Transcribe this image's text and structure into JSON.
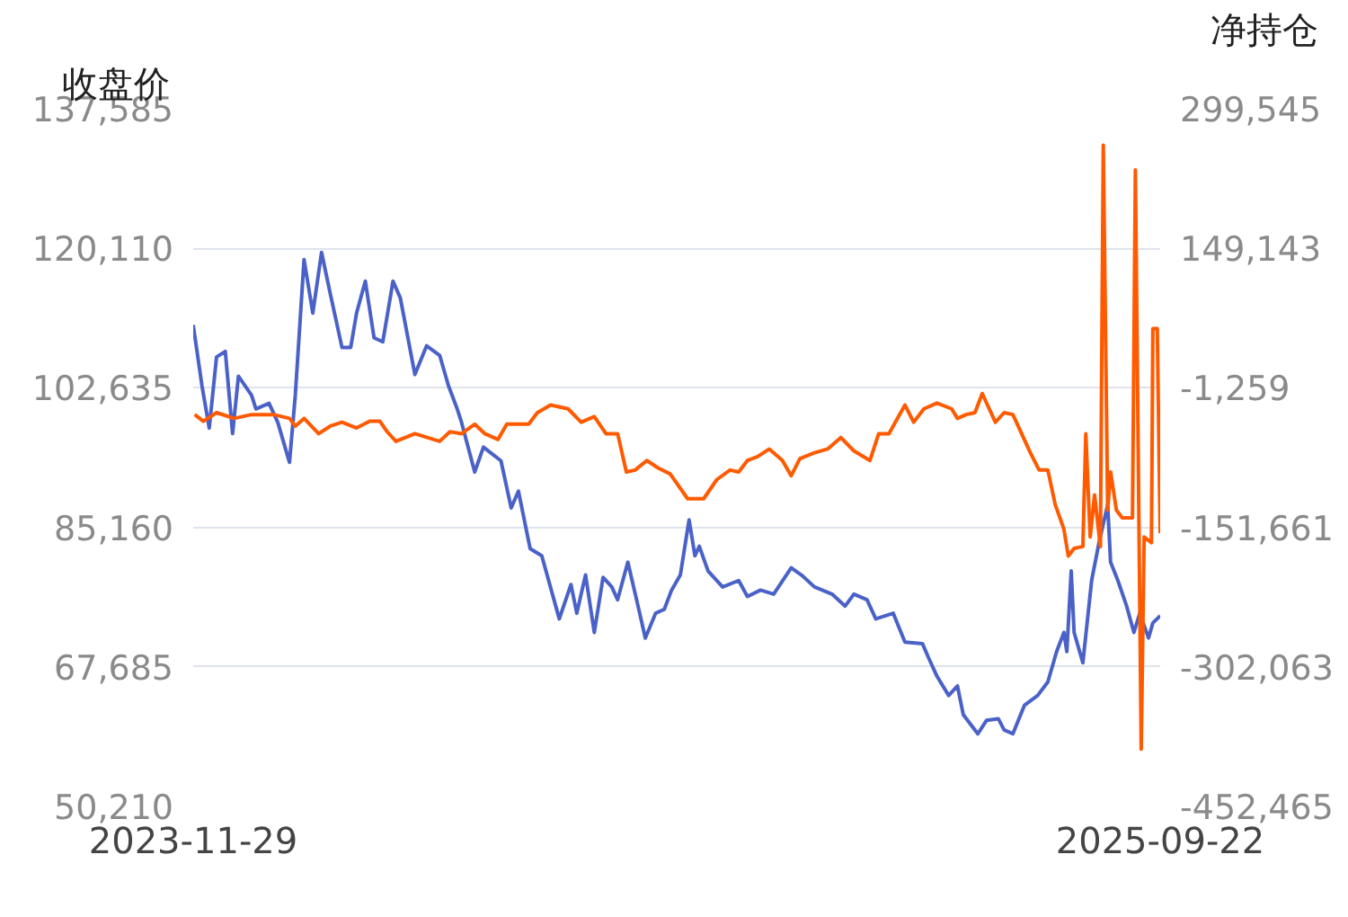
{
  "chart_data": {
    "type": "line",
    "ylabel": "收盘价",
    "y2label": "净持仓",
    "grid": "y",
    "marker": "none",
    "line_style": "solid",
    "xlim": [
      "2023-11-29",
      "2025-09-22"
    ],
    "xticks": [
      "2023-11-29",
      "2025-09-22"
    ],
    "ylim": [
      50210,
      137585
    ],
    "yticks": [
      {
        "value": 50210,
        "label": "50,210"
      },
      {
        "value": 67685,
        "label": "67,685"
      },
      {
        "value": 85160,
        "label": "85,160"
      },
      {
        "value": 102635,
        "label": "102,635"
      },
      {
        "value": 120110,
        "label": "120,110"
      },
      {
        "value": 137585,
        "label": "137,585"
      }
    ],
    "y2lim": [
      -452465,
      299545
    ],
    "y2ticks": [
      {
        "value": -452465,
        "label": "-452,465"
      },
      {
        "value": -302063,
        "label": "-302,063"
      },
      {
        "value": -151661,
        "label": "-151,661"
      },
      {
        "value": -1259,
        "label": "-1,259"
      },
      {
        "value": 149143,
        "label": "149,143"
      },
      {
        "value": 299545,
        "label": "299,545"
      }
    ],
    "series": [
      {
        "color": "#4a62c8",
        "x": [
          "2023-11-29",
          "2023-12-05",
          "2023-12-10",
          "2023-12-15",
          "2023-12-21",
          "2023-12-26",
          "2023-12-30",
          "2024-01-08",
          "2024-01-11",
          "2024-01-20",
          "2024-01-26",
          "2024-02-03",
          "2024-02-07",
          "2024-02-13",
          "2024-02-19",
          "2024-02-25",
          "2024-03-02",
          "2024-03-10",
          "2024-03-16",
          "2024-03-20",
          "2024-03-26",
          "2024-04-01",
          "2024-04-07",
          "2024-04-14",
          "2024-04-19",
          "2024-04-29",
          "2024-05-07",
          "2024-05-16",
          "2024-05-22",
          "2024-05-28",
          "2024-05-31",
          "2024-06-09",
          "2024-06-15",
          "2024-06-27",
          "2024-07-04",
          "2024-07-09",
          "2024-07-17",
          "2024-07-25",
          "2024-08-06",
          "2024-08-14",
          "2024-08-18",
          "2024-08-24",
          "2024-08-30",
          "2024-09-05",
          "2024-09-11",
          "2024-09-15",
          "2024-09-22",
          "2024-09-29",
          "2024-10-04",
          "2024-10-11",
          "2024-10-17",
          "2024-10-22",
          "2024-10-28",
          "2024-11-03",
          "2024-11-07",
          "2024-11-10",
          "2024-11-16",
          "2024-11-26",
          "2024-12-07",
          "2024-12-13",
          "2024-12-22",
          "2024-12-31",
          "2025-01-12",
          "2025-01-19",
          "2025-01-28",
          "2025-02-09",
          "2025-02-18",
          "2025-02-24",
          "2025-03-05",
          "2025-03-11",
          "2025-03-23",
          "2025-03-31",
          "2025-04-12",
          "2025-04-16",
          "2025-04-22",
          "2025-04-30",
          "2025-05-06",
          "2025-05-10",
          "2025-05-20",
          "2025-05-26",
          "2025-06-03",
          "2025-06-07",
          "2025-06-13",
          "2025-06-21",
          "2025-06-30",
          "2025-07-07",
          "2025-07-13",
          "2025-07-18",
          "2025-07-20",
          "2025-07-23",
          "2025-07-25",
          "2025-07-31",
          "2025-08-06",
          "2025-08-11",
          "2025-08-17",
          "2025-08-19",
          "2025-08-24",
          "2025-08-30",
          "2025-09-04",
          "2025-09-08",
          "2025-09-14",
          "2025-09-17",
          "2025-09-22"
        ],
        "values": [
          110500,
          102900,
          97600,
          106500,
          107200,
          96900,
          104100,
          101700,
          100000,
          100700,
          98300,
          93300,
          101700,
          118700,
          112000,
          119600,
          114400,
          107700,
          107700,
          112000,
          116000,
          108900,
          108400,
          116000,
          113900,
          104300,
          107900,
          106700,
          102900,
          100000,
          98300,
          92100,
          95200,
          93500,
          87600,
          89700,
          82500,
          81600,
          73700,
          78000,
          74400,
          79200,
          72000,
          78900,
          77700,
          76100,
          80800,
          75300,
          71300,
          74400,
          74900,
          77300,
          79200,
          86100,
          81600,
          82800,
          79700,
          77700,
          78500,
          76500,
          77300,
          76800,
          80100,
          79200,
          77700,
          76800,
          75300,
          76800,
          76100,
          73700,
          74400,
          70800,
          70600,
          68900,
          66500,
          64100,
          65300,
          61700,
          59300,
          61000,
          61200,
          59800,
          59300,
          62900,
          64100,
          65800,
          69600,
          72000,
          69600,
          79700,
          72000,
          68200,
          78500,
          83200,
          88000,
          80800,
          78500,
          75300,
          72000,
          74400,
          71300,
          73200,
          74100
        ]
      },
      {
        "color": "#ff5a00",
        "axis": "y2",
        "x": [
          "2023-11-30",
          "2023-12-06",
          "2023-12-15",
          "2023-12-27",
          "2024-01-08",
          "2024-01-23",
          "2024-02-03",
          "2024-02-07",
          "2024-02-13",
          "2024-02-23",
          "2024-03-02",
          "2024-03-10",
          "2024-03-20",
          "2024-03-29",
          "2024-04-05",
          "2024-04-10",
          "2024-04-16",
          "2024-04-29",
          "2024-05-16",
          "2024-05-23",
          "2024-05-31",
          "2024-06-09",
          "2024-06-16",
          "2024-06-25",
          "2024-07-01",
          "2024-07-16",
          "2024-07-22",
          "2024-07-31",
          "2024-08-12",
          "2024-08-21",
          "2024-08-30",
          "2024-09-07",
          "2024-09-15",
          "2024-09-21",
          "2024-09-27",
          "2024-10-05",
          "2024-10-13",
          "2024-10-21",
          "2024-11-02",
          "2024-11-13",
          "2024-11-22",
          "2024-12-01",
          "2024-12-07",
          "2024-12-13",
          "2024-12-20",
          "2024-12-28",
          "2025-01-06",
          "2025-01-12",
          "2025-01-18",
          "2025-01-28",
          "2025-02-06",
          "2025-02-15",
          "2025-02-24",
          "2025-03-07",
          "2025-03-13",
          "2025-03-20",
          "2025-03-31",
          "2025-04-06",
          "2025-04-13",
          "2025-04-22",
          "2025-05-02",
          "2025-05-06",
          "2025-05-12",
          "2025-05-18",
          "2025-05-23",
          "2025-06-01",
          "2025-06-07",
          "2025-06-13",
          "2025-06-19",
          "2025-06-25",
          "2025-07-01",
          "2025-07-07",
          "2025-07-12",
          "2025-07-18",
          "2025-07-21",
          "2025-07-25",
          "2025-07-31",
          "2025-08-02",
          "2025-08-05",
          "2025-08-08",
          "2025-08-12",
          "2025-08-14",
          "2025-08-17",
          "2025-08-19",
          "2025-08-23",
          "2025-08-27",
          "2025-09-03",
          "2025-09-05",
          "2025-09-09",
          "2025-09-11",
          "2025-09-16",
          "2025-09-17",
          "2025-09-20",
          "2025-09-22"
        ],
        "values": [
          -30100,
          -37300,
          -28000,
          -34200,
          -30100,
          -30100,
          -34200,
          -42500,
          -34200,
          -50700,
          -42500,
          -38300,
          -44500,
          -37300,
          -37300,
          -48600,
          -58900,
          -50700,
          -58900,
          -48600,
          -50700,
          -40400,
          -50700,
          -56900,
          -40400,
          -40400,
          -28000,
          -19800,
          -23900,
          -38300,
          -32200,
          -50700,
          -50700,
          -91900,
          -89900,
          -79600,
          -87800,
          -94000,
          -120800,
          -120800,
          -100200,
          -89900,
          -91900,
          -79600,
          -75400,
          -67200,
          -79600,
          -96000,
          -77500,
          -71300,
          -67200,
          -54800,
          -69200,
          -79600,
          -50700,
          -50700,
          -19800,
          -38300,
          -23900,
          -17700,
          -23900,
          -34200,
          -30100,
          -28000,
          -7400,
          -38300,
          -28000,
          -30100,
          -50700,
          -71300,
          -89900,
          -89900,
          -126900,
          -153700,
          -182600,
          -174300,
          -172300,
          -50700,
          -162000,
          -116600,
          -172300,
          260400,
          -133100,
          -91900,
          -133100,
          -141400,
          -141400,
          233600,
          -390700,
          -162000,
          -168100,
          62600,
          62600,
          -157800
        ]
      }
    ]
  }
}
